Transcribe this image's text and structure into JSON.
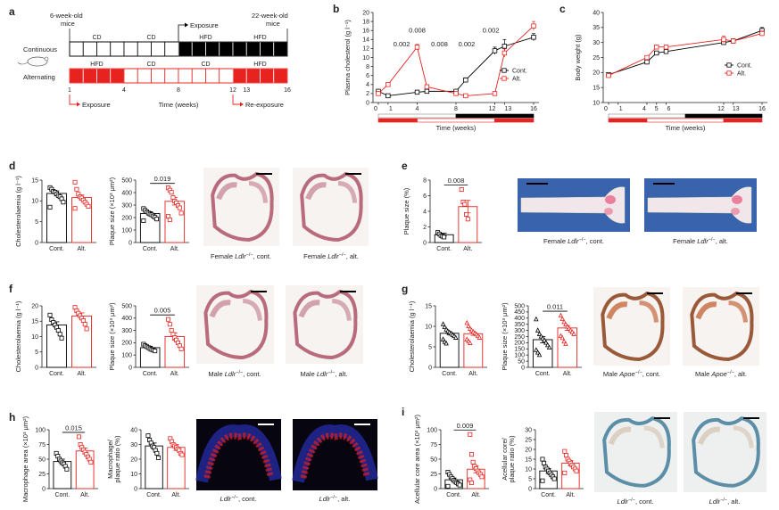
{
  "colors": {
    "cont": "#000000",
    "alt": "#e8221e"
  },
  "schematic": {
    "label": "a",
    "start_note": [
      "6-week-old",
      "mice"
    ],
    "end_note": [
      "22-week-old",
      "mice"
    ],
    "exposure_note": "Exposure",
    "row_labels": [
      "Continuous",
      "Alternating"
    ],
    "continuous_diet": [
      "CD",
      "CD",
      "HFD",
      "HFD"
    ],
    "alternating_diet": [
      "HFD",
      "CD",
      "CD",
      "HFD"
    ],
    "week_ticks": [
      "1",
      "4",
      "8",
      "12",
      "13",
      "16"
    ],
    "time_label": "Time (weeks)",
    "exposure_label": "Exposure",
    "reexposure_label": "Re-exposure"
  },
  "panels": {
    "d": {
      "label": "d",
      "cap1": "Female",
      "cap2": "Ldlr",
      "cap3": "−/−",
      "capA": ", cont.",
      "capB": ", alt."
    },
    "e": {
      "label": "e",
      "cap1": "Female",
      "cap2": "Ldlr",
      "cap3": "−/−",
      "capA": ", cont.",
      "capB": ", alt."
    },
    "f": {
      "label": "f",
      "cap1": "Male",
      "cap2": "Ldlr",
      "cap3": "−/−",
      "capA": ", cont.",
      "capB": ", alt."
    },
    "g": {
      "label": "g",
      "cap1": "Male",
      "cap2": "Apoe",
      "cap3": "−/−",
      "capA": ", cont.",
      "capB": ", alt."
    },
    "h": {
      "label": "h",
      "cap1": "",
      "cap2": "Ldlr",
      "cap3": "−/−",
      "capA": ", cont.",
      "capB": ", alt."
    },
    "i": {
      "label": "i",
      "cap1": "",
      "cap2": "Ldlr",
      "cap3": "−/−",
      "capA": ", cont.",
      "capB": ", alt."
    }
  },
  "chart_data": [
    {
      "id": "b",
      "label": "b",
      "type": "line",
      "ylabel": "Plasma cholesterol (g l⁻¹)",
      "xlabel": "Time (weeks)",
      "x": [
        0,
        1,
        4,
        5,
        8,
        9,
        12,
        13,
        16
      ],
      "xticks": [
        "0",
        "1",
        "4",
        "8",
        "12",
        "13",
        "16"
      ],
      "xtick_vals": [
        0,
        1,
        4,
        8,
        12,
        13,
        16
      ],
      "ylim": [
        0,
        20
      ],
      "yticks": [
        0,
        2,
        4,
        6,
        8,
        10,
        12,
        14,
        16,
        18,
        20
      ],
      "series": [
        {
          "name": "Cont.",
          "key": "cont",
          "marker": "square",
          "values": [
            2.5,
            1.5,
            2.3,
            2.5,
            2.5,
            5.0,
            11.5,
            12.5,
            14.5
          ],
          "err": [
            0.3,
            0.2,
            0.3,
            0.3,
            0.3,
            0.5,
            0.8,
            1.5,
            0.8
          ]
        },
        {
          "name": "Alt.",
          "key": "alt",
          "marker": "square",
          "values": [
            2.0,
            4.0,
            12.3,
            3.5,
            2.0,
            1.5,
            2.0,
            11.0,
            17.0
          ],
          "err": [
            0.3,
            0.4,
            0.6,
            0.4,
            0.3,
            0.2,
            0.3,
            0.9,
            1.0
          ]
        }
      ],
      "annotations": [
        "0.002",
        "0.008",
        "0.008",
        "0.002",
        "0.002"
      ],
      "legend": "right"
    },
    {
      "id": "c",
      "label": "c",
      "type": "line",
      "ylabel": "Body weight (g)",
      "xlabel": "Time (weeks)",
      "x": [
        0,
        4,
        5,
        6,
        12,
        13,
        16
      ],
      "xticks": [
        "0",
        "1",
        "4",
        "5",
        "6",
        "12",
        "13",
        "16"
      ],
      "xtick_vals": [
        0,
        1,
        4,
        5,
        6,
        12,
        13,
        16
      ],
      "ylim": [
        10,
        40
      ],
      "yticks": [
        10,
        15,
        20,
        25,
        30,
        35,
        40
      ],
      "series": [
        {
          "name": "Cont.",
          "key": "cont",
          "marker": "square",
          "values": [
            19.3,
            23.5,
            26.5,
            27.0,
            30.0,
            30.5,
            34.0
          ],
          "err": [
            0.5,
            0.5,
            0.6,
            0.5,
            0.8,
            0.7,
            1.0
          ]
        },
        {
          "name": "Alt.",
          "key": "alt",
          "marker": "square",
          "values": [
            19.0,
            25.0,
            28.5,
            28.5,
            31.0,
            30.5,
            33.0
          ],
          "err": [
            0.5,
            0.6,
            0.6,
            0.5,
            1.2,
            0.7,
            0.8
          ]
        }
      ],
      "legend": "right"
    },
    {
      "id": "d1",
      "type": "bar",
      "ylabel": "Cholesterolaemia (g l⁻¹)",
      "categories": [
        "Cont.",
        "Alt."
      ],
      "values": [
        11.8,
        10.8
      ],
      "err": [
        0.6,
        0.6
      ],
      "ylim": [
        0,
        15
      ],
      "yticks": [
        0,
        5,
        10,
        15
      ],
      "marker": "square",
      "points": [
        [
          13.2,
          12.8,
          12.3,
          12.1,
          11.7,
          11.3,
          11.0,
          10.5,
          9.7,
          8.5
        ],
        [
          14.5,
          12.8,
          11.6,
          11.0,
          10.7,
          10.2,
          9.7,
          9.2,
          8.7,
          8.2
        ]
      ]
    },
    {
      "id": "d2",
      "type": "bar",
      "ylabel": "Plaque size (×10³ μm²)",
      "categories": [
        "Cont.",
        "Alt."
      ],
      "values": [
        232,
        330
      ],
      "err": [
        15,
        30
      ],
      "ylim": [
        0,
        500
      ],
      "yticks": [
        0,
        100,
        200,
        300,
        400,
        500
      ],
      "marker": "square",
      "pvalue": "0.019",
      "points": [
        [
          272,
          258,
          246,
          236,
          228,
          222,
          212,
          202,
          188,
          175
        ],
        [
          438,
          420,
          402,
          360,
          332,
          318,
          296,
          278,
          236,
          210,
          182
        ]
      ]
    },
    {
      "id": "e1",
      "type": "bar",
      "ylabel": "Plaque size (%)",
      "categories": [
        "Cont.",
        "Alt."
      ],
      "values": [
        1.0,
        4.6
      ],
      "err": [
        0.2,
        0.8
      ],
      "ylim": [
        0,
        8
      ],
      "yticks": [
        0,
        2,
        4,
        6,
        8
      ],
      "marker": "square",
      "pvalue": "0.008",
      "points": [
        [
          1.3,
          1.1,
          0.9,
          0.8,
          0.7
        ],
        [
          6.8,
          5.2,
          4.9,
          3.6,
          3.0
        ]
      ]
    },
    {
      "id": "f1",
      "type": "bar",
      "ylabel": "Cholesterolaemia (g l⁻¹)",
      "categories": [
        "Cont.",
        "Alt."
      ],
      "values": [
        13.8,
        16.7
      ],
      "err": [
        1.0,
        1.0
      ],
      "ylim": [
        0,
        20
      ],
      "yticks": [
        0,
        5,
        10,
        15,
        20
      ],
      "marker": "square",
      "points": [
        [
          17.0,
          15.5,
          14.6,
          13.8,
          13.0,
          12.0,
          10.8,
          9.5
        ],
        [
          19.5,
          18.4,
          17.6,
          16.8,
          16.0,
          15.2,
          14.0,
          12.5
        ]
      ]
    },
    {
      "id": "f2",
      "type": "bar",
      "ylabel": "Plaque size (×10³ μm²)",
      "categories": [
        "Cont.",
        "Alt."
      ],
      "values": [
        160,
        250
      ],
      "err": [
        12,
        30
      ],
      "ylim": [
        0,
        500
      ],
      "yticks": [
        0,
        100,
        200,
        300,
        400,
        500
      ],
      "marker": "square",
      "pvalue": "0.005",
      "points": [
        [
          188,
          176,
          168,
          160,
          152,
          145,
          140,
          133
        ],
        [
          390,
          350,
          300,
          268,
          242,
          222,
          200,
          176,
          150
        ]
      ]
    },
    {
      "id": "g1",
      "type": "bar",
      "ylabel": "Cholesterolaemia (g l⁻¹)",
      "categories": [
        "Cont.",
        "Alt."
      ],
      "values": [
        8.3,
        8.2
      ],
      "err": [
        0.4,
        0.4
      ],
      "ylim": [
        0,
        15
      ],
      "yticks": [
        0,
        5,
        10,
        15
      ],
      "marker": "triangle",
      "points": [
        [
          10.5,
          9.8,
          9.2,
          8.8,
          8.5,
          8.2,
          7.9,
          7.6,
          7.2,
          6.8,
          6.2,
          5.8
        ],
        [
          10.8,
          10.0,
          9.4,
          9.0,
          8.6,
          8.3,
          8.0,
          7.6,
          7.2,
          6.8,
          6.3,
          5.9
        ]
      ]
    },
    {
      "id": "g2",
      "type": "bar",
      "ylabel": "Plaque size (×10³ μm²)",
      "categories": [
        "Cont.",
        "Alt."
      ],
      "values": [
        225,
        320
      ],
      "err": [
        25,
        20
      ],
      "ylim": [
        0,
        500
      ],
      "yticks": [
        0,
        50,
        100,
        150,
        200,
        250,
        300,
        350,
        400,
        450,
        500
      ],
      "marker": "triangle",
      "pvalue": "0.011",
      "points": [
        [
          390,
          300,
          270,
          250,
          235,
          220,
          200,
          180,
          160,
          140,
          120,
          100
        ],
        [
          420,
          392,
          368,
          348,
          330,
          316,
          300,
          286,
          270,
          254,
          238,
          210,
          190
        ]
      ]
    },
    {
      "id": "h1",
      "type": "bar",
      "ylabel": "Macrophage area (×10³ μm²)",
      "categories": [
        "Cont.",
        "Alt."
      ],
      "values": [
        46,
        64
      ],
      "err": [
        4,
        5
      ],
      "ylim": [
        0,
        100
      ],
      "yticks": [
        0,
        25,
        50,
        75,
        100
      ],
      "marker": "square",
      "pvalue": "0.015",
      "points": [
        [
          60,
          55,
          50,
          47,
          44,
          42,
          38,
          33
        ],
        [
          88,
          75,
          70,
          66,
          62,
          58,
          54,
          50,
          45
        ]
      ]
    },
    {
      "id": "h2",
      "type": "bar",
      "ylabel": "Macrophage/ plaque ratio (%)",
      "categories": [
        "Cont.",
        "Alt."
      ],
      "values": [
        29,
        28
      ],
      "err": [
        2,
        2
      ],
      "ylim": [
        0,
        40
      ],
      "yticks": [
        0,
        10,
        20,
        30,
        40
      ],
      "marker": "square",
      "points": [
        [
          36,
          33,
          31,
          29,
          28,
          26,
          24,
          21
        ],
        [
          34,
          32,
          30,
          29,
          28,
          27,
          26,
          24,
          23
        ]
      ]
    },
    {
      "id": "i1",
      "type": "bar",
      "ylabel": "Acellular core area (×10³ μm²)",
      "categories": [
        "Cont.",
        "Alt."
      ],
      "values": [
        15,
        33
      ],
      "err": [
        3,
        6
      ],
      "ylim": [
        0,
        100
      ],
      "yticks": [
        0,
        25,
        50,
        75,
        100
      ],
      "marker": "square",
      "pvalue": "0.009",
      "points": [
        [
          28,
          24,
          20,
          17,
          14,
          12,
          10,
          8,
          6,
          4
        ],
        [
          92,
          58,
          45,
          38,
          34,
          30,
          27,
          24,
          20,
          15,
          10
        ]
      ]
    },
    {
      "id": "i2",
      "type": "bar",
      "ylabel": "Acellular core/ plaque ratio (%)",
      "categories": [
        "Cont.",
        "Alt."
      ],
      "values": [
        9,
        13
      ],
      "err": [
        1.3,
        1.3
      ],
      "ylim": [
        0,
        30
      ],
      "yticks": [
        0,
        5,
        10,
        15,
        20,
        25,
        30
      ],
      "marker": "square",
      "points": [
        [
          15,
          13,
          11,
          10,
          9,
          8,
          7,
          6,
          5,
          4
        ],
        [
          19,
          17,
          15,
          14,
          13,
          12,
          11,
          10,
          9,
          8
        ]
      ]
    }
  ]
}
